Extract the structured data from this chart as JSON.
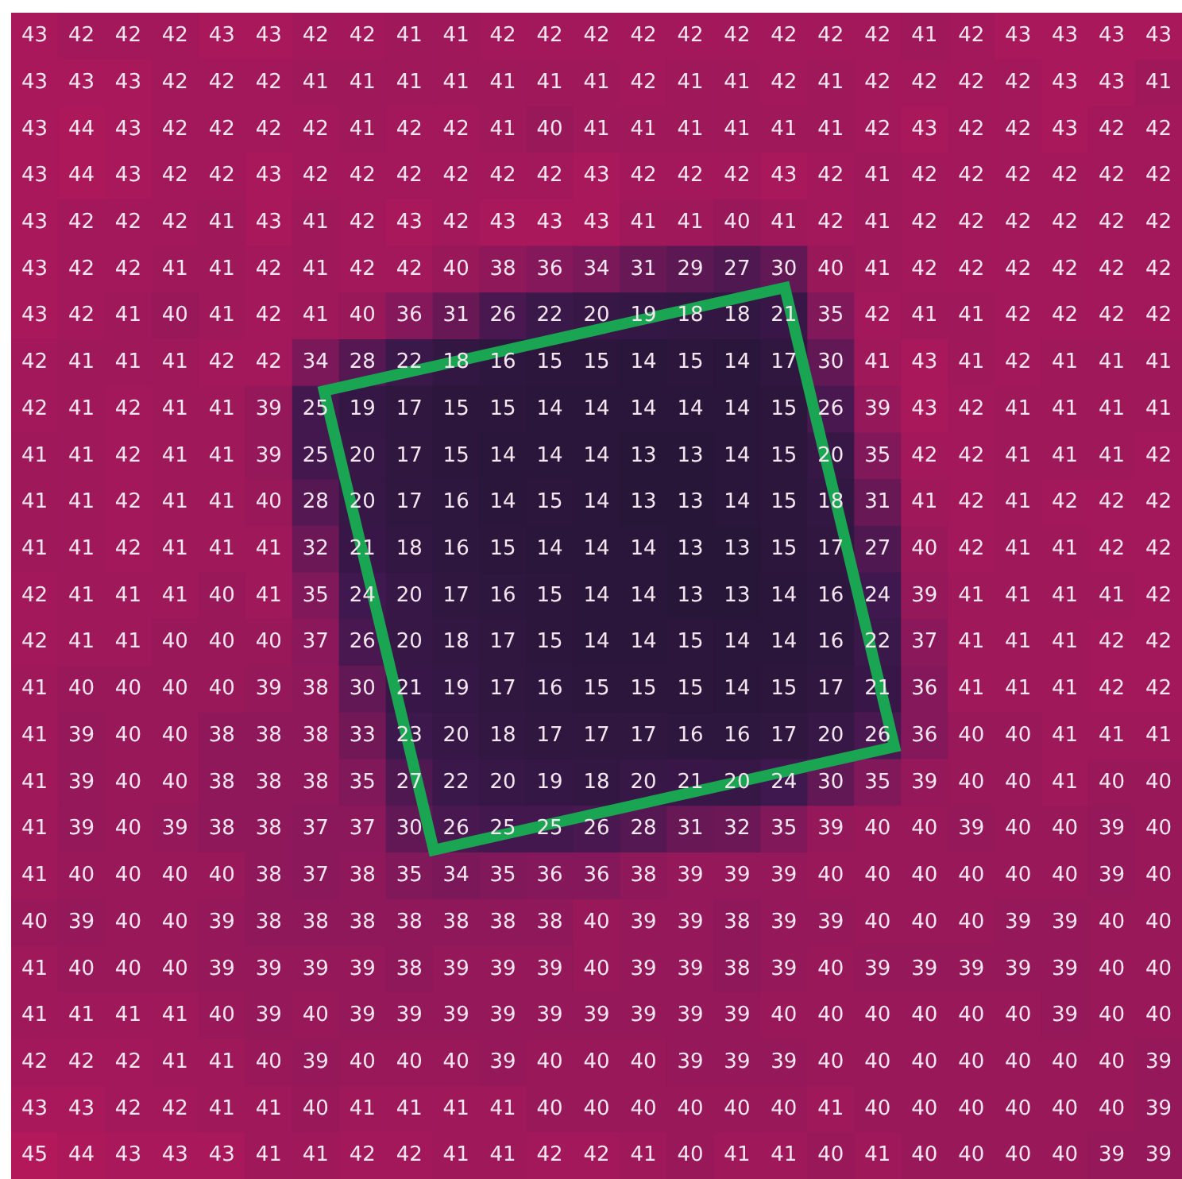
{
  "chart_data": {
    "type": "heatmap",
    "data_labels": true,
    "categories": [
      null,
      null,
      null,
      null,
      null,
      null,
      null,
      null,
      null,
      null,
      null,
      null,
      null,
      null,
      null,
      null,
      null,
      null,
      null,
      null,
      null,
      null,
      null,
      null,
      null
    ],
    "y_categories": [
      null,
      null,
      null,
      null,
      null,
      null,
      null,
      null,
      null,
      null,
      null,
      null,
      null,
      null,
      null,
      null,
      null,
      null,
      null,
      null,
      null,
      null,
      null,
      null,
      null
    ],
    "cells": [
      [
        43,
        42,
        42,
        42,
        43,
        43,
        42,
        42,
        41,
        41,
        42,
        42,
        42,
        42,
        42,
        42,
        42,
        42,
        42,
        41,
        42,
        43,
        43,
        43,
        43
      ],
      [
        43,
        43,
        43,
        42,
        42,
        42,
        41,
        41,
        41,
        41,
        41,
        41,
        41,
        42,
        41,
        41,
        42,
        41,
        42,
        42,
        42,
        42,
        43,
        43,
        41
      ],
      [
        43,
        44,
        43,
        42,
        42,
        42,
        42,
        41,
        42,
        42,
        41,
        40,
        41,
        41,
        41,
        41,
        41,
        41,
        42,
        43,
        42,
        42,
        43,
        42,
        42
      ],
      [
        43,
        44,
        43,
        42,
        42,
        43,
        42,
        42,
        42,
        42,
        42,
        42,
        43,
        42,
        42,
        42,
        43,
        42,
        41,
        42,
        42,
        42,
        42,
        42,
        42
      ],
      [
        43,
        42,
        42,
        42,
        41,
        43,
        41,
        42,
        43,
        42,
        43,
        43,
        43,
        41,
        41,
        40,
        41,
        42,
        41,
        42,
        42,
        42,
        42,
        42,
        42
      ],
      [
        43,
        42,
        42,
        41,
        41,
        42,
        41,
        42,
        42,
        40,
        38,
        36,
        34,
        31,
        29,
        27,
        30,
        40,
        41,
        42,
        42,
        42,
        42,
        42,
        42
      ],
      [
        43,
        42,
        41,
        40,
        41,
        42,
        41,
        40,
        36,
        31,
        26,
        22,
        20,
        19,
        18,
        18,
        21,
        35,
        42,
        41,
        41,
        42,
        42,
        42,
        42
      ],
      [
        42,
        41,
        41,
        41,
        42,
        42,
        34,
        28,
        22,
        18,
        16,
        15,
        15,
        14,
        15,
        14,
        17,
        30,
        41,
        43,
        41,
        42,
        41,
        41,
        41
      ],
      [
        42,
        41,
        42,
        41,
        41,
        39,
        25,
        19,
        17,
        15,
        15,
        14,
        14,
        14,
        14,
        14,
        15,
        26,
        39,
        43,
        42,
        41,
        41,
        41,
        41
      ],
      [
        41,
        41,
        42,
        41,
        41,
        39,
        25,
        20,
        17,
        15,
        14,
        14,
        14,
        13,
        13,
        14,
        15,
        20,
        35,
        42,
        42,
        41,
        41,
        41,
        42
      ],
      [
        41,
        41,
        42,
        41,
        41,
        40,
        28,
        20,
        17,
        16,
        14,
        15,
        14,
        13,
        13,
        14,
        15,
        18,
        31,
        41,
        42,
        41,
        42,
        42,
        42
      ],
      [
        41,
        41,
        42,
        41,
        41,
        41,
        32,
        21,
        18,
        16,
        15,
        14,
        14,
        14,
        13,
        13,
        15,
        17,
        27,
        40,
        42,
        41,
        41,
        42,
        42
      ],
      [
        42,
        41,
        41,
        41,
        40,
        41,
        35,
        24,
        20,
        17,
        16,
        15,
        14,
        14,
        13,
        13,
        14,
        16,
        24,
        39,
        41,
        41,
        41,
        41,
        42
      ],
      [
        42,
        41,
        41,
        40,
        40,
        40,
        37,
        26,
        20,
        18,
        17,
        15,
        14,
        14,
        15,
        14,
        14,
        16,
        22,
        37,
        41,
        41,
        41,
        42,
        42
      ],
      [
        41,
        40,
        40,
        40,
        40,
        39,
        38,
        30,
        21,
        19,
        17,
        16,
        15,
        15,
        15,
        14,
        15,
        17,
        21,
        36,
        41,
        41,
        41,
        42,
        42
      ],
      [
        41,
        39,
        40,
        40,
        38,
        38,
        38,
        33,
        23,
        20,
        18,
        17,
        17,
        17,
        16,
        16,
        17,
        20,
        26,
        36,
        40,
        40,
        41,
        41,
        41
      ],
      [
        41,
        39,
        40,
        40,
        38,
        38,
        38,
        35,
        27,
        22,
        20,
        19,
        18,
        20,
        21,
        20,
        24,
        30,
        35,
        39,
        40,
        40,
        41,
        40,
        40
      ],
      [
        41,
        39,
        40,
        39,
        38,
        38,
        37,
        37,
        30,
        26,
        25,
        25,
        26,
        28,
        31,
        32,
        35,
        39,
        40,
        40,
        39,
        40,
        40,
        39,
        40
      ],
      [
        41,
        40,
        40,
        40,
        40,
        38,
        37,
        38,
        35,
        34,
        35,
        36,
        36,
        38,
        39,
        39,
        39,
        40,
        40,
        40,
        40,
        40,
        40,
        39,
        40
      ],
      [
        40,
        39,
        40,
        40,
        39,
        38,
        38,
        38,
        38,
        38,
        38,
        38,
        40,
        39,
        39,
        38,
        39,
        39,
        40,
        40,
        40,
        39,
        39,
        40,
        40
      ],
      [
        41,
        40,
        40,
        40,
        39,
        39,
        39,
        39,
        38,
        39,
        39,
        39,
        40,
        39,
        39,
        38,
        39,
        40,
        39,
        39,
        39,
        39,
        39,
        40,
        40
      ],
      [
        41,
        41,
        41,
        41,
        40,
        39,
        40,
        39,
        39,
        39,
        39,
        39,
        39,
        39,
        39,
        39,
        40,
        40,
        40,
        40,
        40,
        40,
        39,
        40,
        40
      ],
      [
        42,
        42,
        42,
        41,
        41,
        40,
        39,
        40,
        40,
        40,
        39,
        40,
        40,
        40,
        39,
        39,
        39,
        40,
        40,
        40,
        40,
        40,
        40,
        40,
        39
      ],
      [
        43,
        43,
        42,
        42,
        41,
        41,
        40,
        41,
        41,
        41,
        41,
        40,
        40,
        40,
        40,
        40,
        40,
        41,
        40,
        40,
        40,
        40,
        40,
        40,
        39
      ],
      [
        45,
        44,
        43,
        43,
        43,
        41,
        41,
        42,
        42,
        41,
        41,
        42,
        42,
        41,
        40,
        41,
        41,
        40,
        41,
        40,
        40,
        40,
        40,
        39,
        39
      ]
    ]
  }
}
